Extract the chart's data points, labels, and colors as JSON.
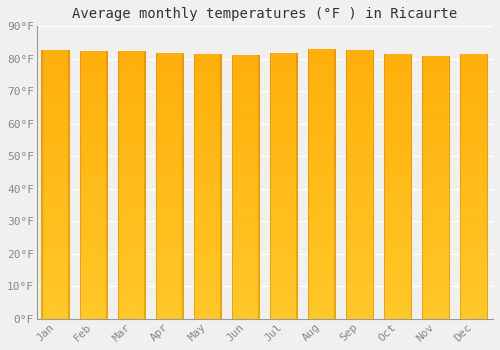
{
  "title": "Average monthly temperatures (°F ) in Ricaurte",
  "months": [
    "Jan",
    "Feb",
    "Mar",
    "Apr",
    "May",
    "Jun",
    "Jul",
    "Aug",
    "Sep",
    "Oct",
    "Nov",
    "Dec"
  ],
  "values": [
    82.8,
    82.4,
    82.4,
    81.7,
    81.5,
    81.1,
    81.9,
    83.1,
    82.7,
    81.6,
    80.8,
    81.5
  ],
  "bar_color_center": "#FFD04A",
  "bar_color_edge": "#F5A000",
  "ylim": [
    0,
    90
  ],
  "yticks": [
    0,
    10,
    20,
    30,
    40,
    50,
    60,
    70,
    80,
    90
  ],
  "ytick_labels": [
    "0°F",
    "10°F",
    "20°F",
    "30°F",
    "40°F",
    "50°F",
    "60°F",
    "70°F",
    "80°F",
    "90°F"
  ],
  "background_color": "#f0f0f0",
  "grid_color": "#ffffff",
  "title_fontsize": 10,
  "tick_fontsize": 8,
  "font_family": "monospace"
}
